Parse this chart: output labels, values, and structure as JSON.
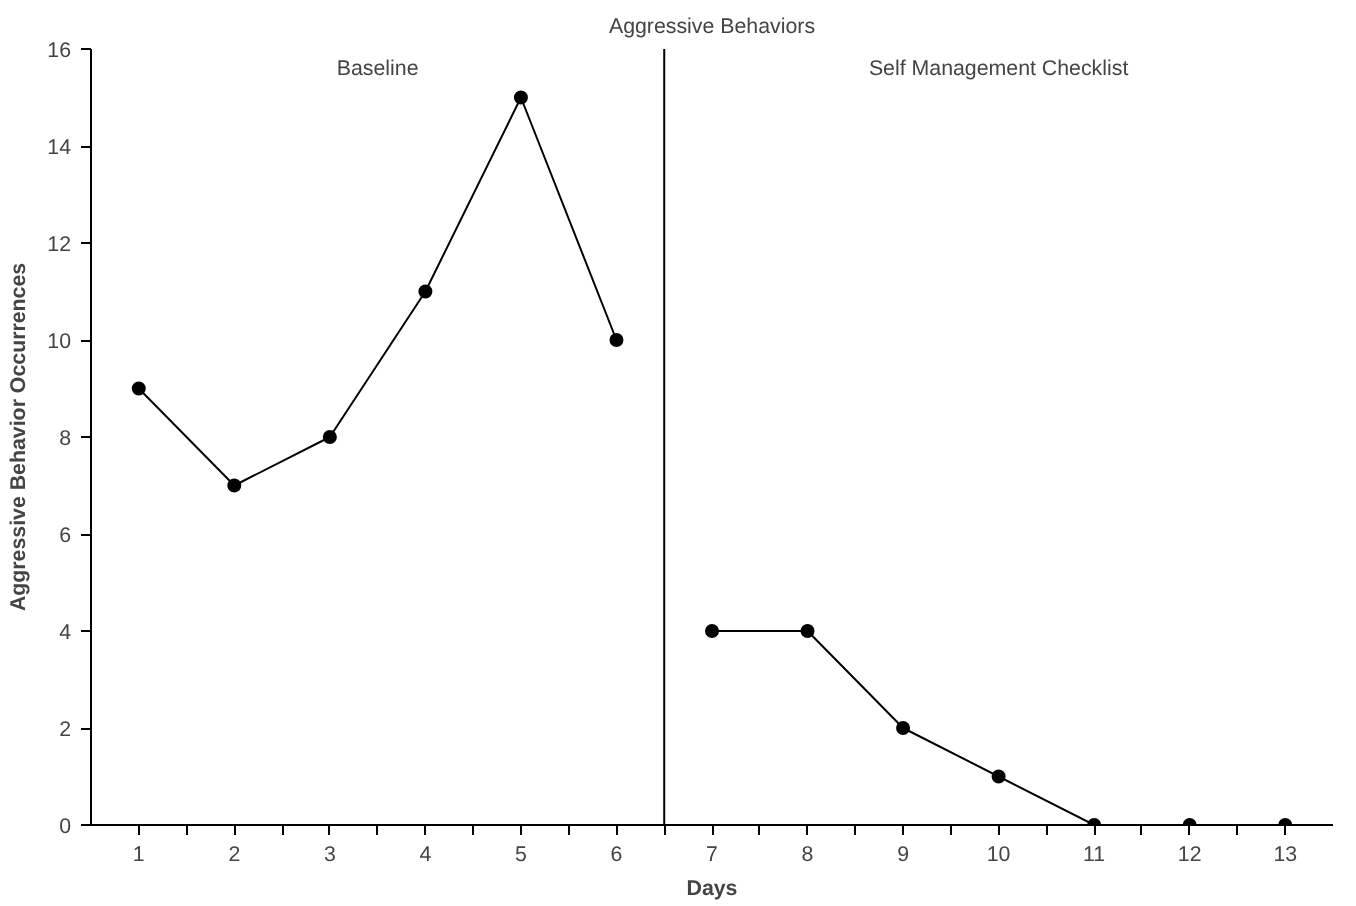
{
  "chart_data": {
    "type": "line",
    "title": "Aggressive Behaviors",
    "xlabel": "Days",
    "ylabel": "Aggressive Behavior Occurrences",
    "series": [
      {
        "color": "#000000",
        "x": [
          1,
          2,
          3,
          4,
          5,
          6
        ],
        "values": [
          9,
          7,
          8,
          11,
          15,
          10
        ]
      },
      {
        "color": "#000000",
        "x": [
          7,
          8,
          9,
          10,
          11,
          12,
          13
        ],
        "values": [
          4,
          4,
          2,
          1,
          0,
          0,
          0
        ]
      }
    ],
    "xlim": [
      0.5,
      13.5
    ],
    "ylim": [
      0,
      16
    ],
    "xticks": [
      1,
      2,
      3,
      4,
      5,
      6,
      7,
      8,
      9,
      10,
      11,
      12,
      13,
      {
        "value": 1.5,
        "label": null
      },
      {
        "value": 2.5,
        "label": null
      },
      {
        "value": 3.5,
        "label": null
      },
      {
        "value": 4.5,
        "label": null
      },
      {
        "value": 5.5,
        "label": null
      },
      {
        "value": 6.5,
        "label": null
      },
      {
        "value": 7.5,
        "label": null
      },
      {
        "value": 8.5,
        "label": null
      },
      {
        "value": 9.5,
        "label": null
      },
      {
        "value": 10.5,
        "label": null
      },
      {
        "value": 11.5,
        "label": null
      },
      {
        "value": 12.5,
        "label": null
      }
    ],
    "yticks": [
      0,
      2,
      4,
      6,
      8,
      10,
      12,
      14,
      16
    ],
    "ref_lines": [
      {
        "axis": "x",
        "value": 6.5,
        "color": "#000000"
      }
    ],
    "annotations": [
      "Baseline",
      "Self Management Checklist"
    ],
    "marker": "circle",
    "line_style": "solid",
    "grid": false
  }
}
